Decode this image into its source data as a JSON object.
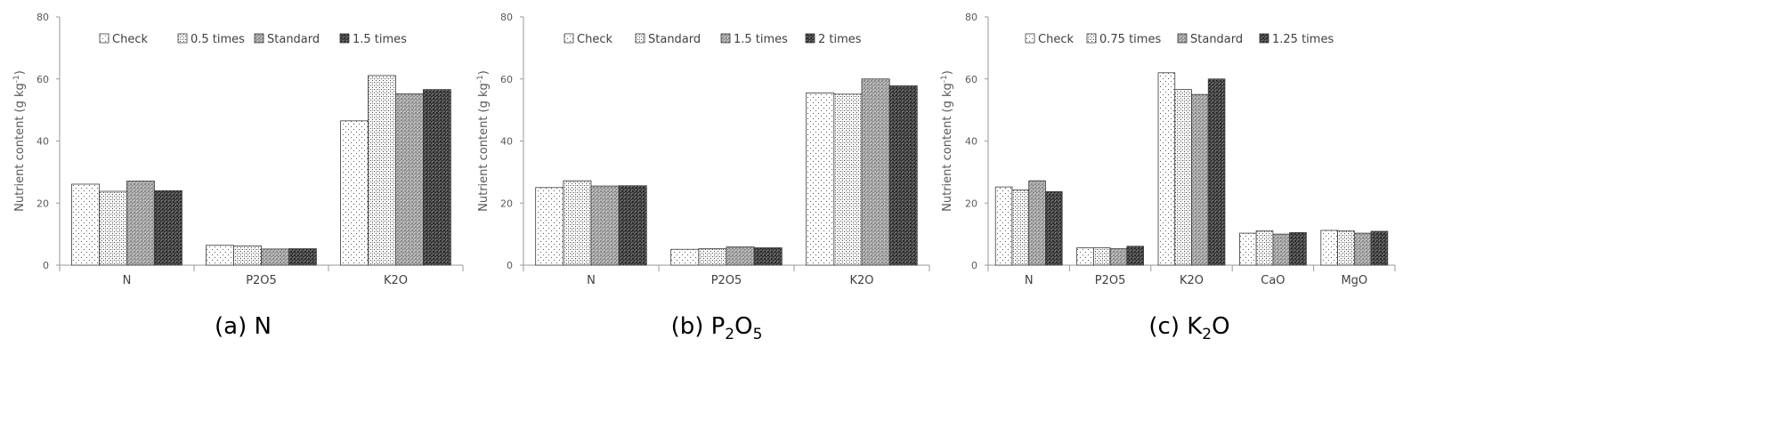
{
  "chart_data": [
    {
      "type": "bar",
      "caption": {
        "pre": "(a) N",
        "sub1": "",
        "mid": "",
        "sub2": ""
      },
      "ylabel": "Nutrient content (g kg-1)",
      "ylim": [
        0,
        80
      ],
      "yticks": [
        0,
        20,
        40,
        60,
        80
      ],
      "categories": [
        "N",
        "P2O5",
        "K2O"
      ],
      "legend_position": "top",
      "series": [
        {
          "name": "Check",
          "pattern": "dots-sparse",
          "values": [
            26.1,
            6.4,
            46.5
          ]
        },
        {
          "name": "0.5 times",
          "pattern": "dots-dense",
          "values": [
            23.8,
            6.2,
            61.1
          ]
        },
        {
          "name": "Standard",
          "pattern": "grid-light",
          "values": [
            27.1,
            5.2,
            55.2
          ]
        },
        {
          "name": "1.5 times",
          "pattern": "grid-dark",
          "values": [
            24.0,
            5.3,
            56.6
          ]
        }
      ]
    },
    {
      "type": "bar",
      "caption": {
        "pre": "(b) P",
        "sub1": "2",
        "mid": "O",
        "sub2": "5"
      },
      "ylabel": "Nutrient content (g kg-1)",
      "ylim": [
        0,
        80
      ],
      "yticks": [
        0,
        20,
        40,
        60,
        80
      ],
      "categories": [
        "N",
        "P2O5",
        "K2O"
      ],
      "legend_position": "top",
      "series": [
        {
          "name": "Check",
          "pattern": "dots-sparse",
          "values": [
            25.0,
            5.1,
            55.5
          ]
        },
        {
          "name": "Standard",
          "pattern": "dots-dense",
          "values": [
            27.2,
            5.3,
            55.1
          ]
        },
        {
          "name": "1.5 times",
          "pattern": "grid-light",
          "values": [
            25.5,
            5.9,
            60.0
          ]
        },
        {
          "name": "2 times",
          "pattern": "grid-dark",
          "values": [
            25.6,
            5.6,
            57.8
          ]
        }
      ]
    },
    {
      "type": "bar",
      "caption": {
        "pre": "(c) K",
        "sub1": "2",
        "mid": "O",
        "sub2": ""
      },
      "ylabel": "Nutrient content (g kg-1)",
      "ylim": [
        0,
        80
      ],
      "yticks": [
        0,
        20,
        40,
        60,
        80
      ],
      "categories": [
        "N",
        "P2O5",
        "K2O",
        "CaO",
        "MgO"
      ],
      "legend_position": "top",
      "series": [
        {
          "name": "Check",
          "pattern": "dots-sparse",
          "values": [
            25.2,
            5.6,
            62.0,
            10.3,
            11.2
          ]
        },
        {
          "name": "0.75 times",
          "pattern": "dots-dense",
          "values": [
            24.2,
            5.6,
            56.6,
            11.1,
            11.1
          ]
        },
        {
          "name": "Standard",
          "pattern": "grid-light",
          "values": [
            27.2,
            5.3,
            55.0,
            10.0,
            10.3
          ]
        },
        {
          "name": "1.25 times",
          "pattern": "grid-dark",
          "values": [
            23.7,
            6.1,
            60.0,
            10.5,
            10.9
          ]
        }
      ]
    }
  ]
}
